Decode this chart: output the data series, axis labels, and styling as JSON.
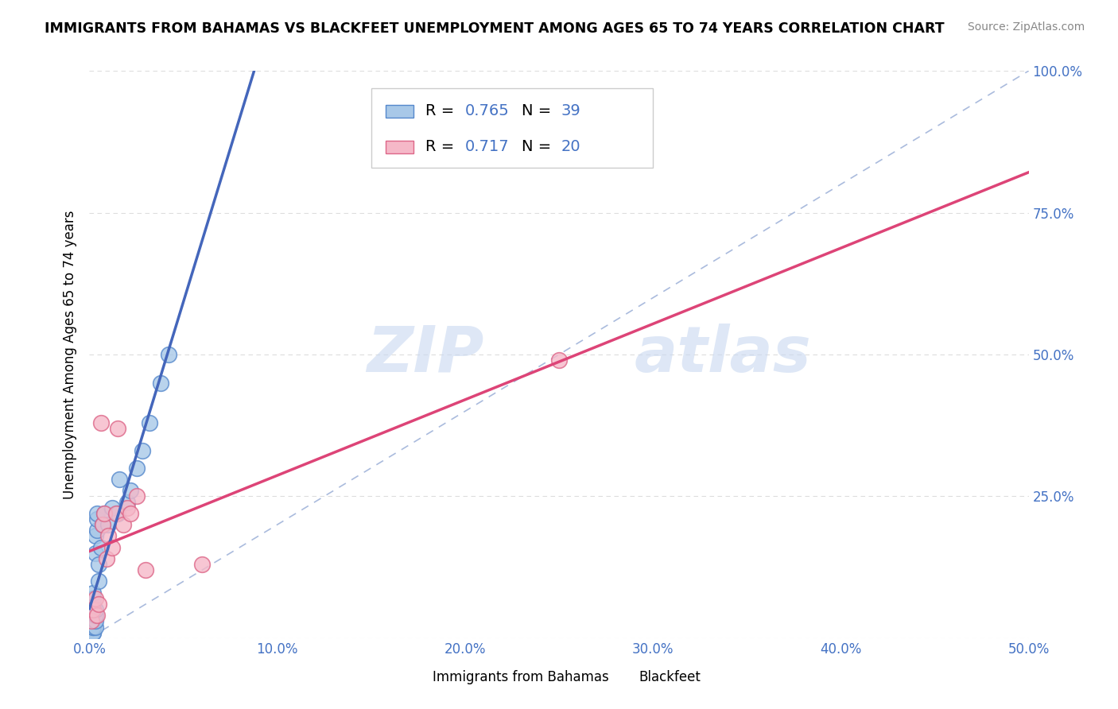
{
  "title": "IMMIGRANTS FROM BAHAMAS VS BLACKFEET UNEMPLOYMENT AMONG AGES 65 TO 74 YEARS CORRELATION CHART",
  "source": "Source: ZipAtlas.com",
  "ylabel": "Unemployment Among Ages 65 to 74 years",
  "xlim": [
    0.0,
    0.5
  ],
  "ylim": [
    0.0,
    1.0
  ],
  "xticks": [
    0.0,
    0.1,
    0.2,
    0.3,
    0.4,
    0.5
  ],
  "yticks": [
    0.0,
    0.25,
    0.5,
    0.75,
    1.0
  ],
  "xtick_labels": [
    "0.0%",
    "10.0%",
    "20.0%",
    "30.0%",
    "40.0%",
    "50.0%"
  ],
  "ytick_labels": [
    "",
    "25.0%",
    "50.0%",
    "75.0%",
    "100.0%"
  ],
  "watermark_zip": "ZIP",
  "watermark_atlas": "atlas",
  "legend_r_blue": "0.765",
  "legend_n_blue": "39",
  "legend_r_pink": "0.717",
  "legend_n_pink": "20",
  "blue_color": "#a8c8e8",
  "blue_edge_color": "#5588cc",
  "blue_line_color": "#4466bb",
  "pink_color": "#f5b8c8",
  "pink_edge_color": "#dd6688",
  "pink_line_color": "#dd4477",
  "text_blue": "#4472c4",
  "grid_color": "#dddddd",
  "ref_line_color": "#aabbdd",
  "background": "#ffffff",
  "bahamas_x": [
    0.001,
    0.001,
    0.001,
    0.001,
    0.002,
    0.002,
    0.002,
    0.002,
    0.002,
    0.002,
    0.002,
    0.002,
    0.002,
    0.002,
    0.003,
    0.003,
    0.003,
    0.003,
    0.003,
    0.003,
    0.004,
    0.004,
    0.004,
    0.005,
    0.005,
    0.006,
    0.007,
    0.008,
    0.01,
    0.012,
    0.015,
    0.016,
    0.02,
    0.022,
    0.025,
    0.028,
    0.032,
    0.038,
    0.042
  ],
  "bahamas_y": [
    0.01,
    0.02,
    0.02,
    0.03,
    0.01,
    0.01,
    0.02,
    0.02,
    0.03,
    0.04,
    0.05,
    0.06,
    0.07,
    0.08,
    0.02,
    0.03,
    0.04,
    0.05,
    0.15,
    0.18,
    0.19,
    0.21,
    0.22,
    0.1,
    0.13,
    0.16,
    0.2,
    0.22,
    0.2,
    0.23,
    0.22,
    0.28,
    0.24,
    0.26,
    0.3,
    0.33,
    0.38,
    0.45,
    0.5
  ],
  "blackfeet_x": [
    0.001,
    0.002,
    0.003,
    0.004,
    0.005,
    0.006,
    0.007,
    0.008,
    0.009,
    0.01,
    0.012,
    0.014,
    0.015,
    0.018,
    0.02,
    0.022,
    0.025,
    0.03,
    0.06,
    0.25
  ],
  "blackfeet_y": [
    0.03,
    0.05,
    0.07,
    0.04,
    0.06,
    0.38,
    0.2,
    0.22,
    0.14,
    0.18,
    0.16,
    0.22,
    0.37,
    0.2,
    0.23,
    0.22,
    0.25,
    0.12,
    0.13,
    0.49
  ]
}
